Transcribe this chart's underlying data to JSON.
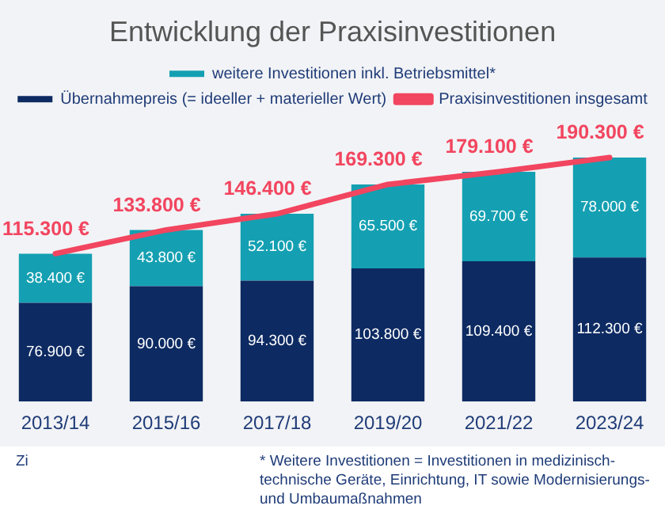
{
  "chart_data": {
    "type": "bar",
    "title": "Entwicklung der Praxisinvestitionen",
    "categories": [
      "2013/14",
      "2015/16",
      "2017/18",
      "2019/20",
      "2021/22",
      "2023/24"
    ],
    "stacked": true,
    "tick_labels": "x",
    "grid": false,
    "legend": "top",
    "series": [
      {
        "name": "Übernahmepreis (= ideeller + materieller Wert)",
        "color": "#0d2a62",
        "values": [
          76900,
          90000,
          94300,
          103800,
          109400,
          112300
        ],
        "value_labels": [
          "76.900 €",
          "90.000 €",
          "94.300 €",
          "103.800 €",
          "109.400 €",
          "112.300 €"
        ]
      },
      {
        "name": "weitere Investitionen inkl. Betriebsmittel*",
        "color": "#14a0b2",
        "values": [
          38400,
          43800,
          52100,
          65500,
          69700,
          78000
        ],
        "value_labels": [
          "38.400 €",
          "43.800 €",
          "52.100 €",
          "65.500 €",
          "69.700 €",
          "78.000 €"
        ]
      },
      {
        "name": "Praxisinvestitionen insgesamt",
        "type": "line",
        "color": "#f2455f",
        "values": [
          115300,
          133800,
          146400,
          169300,
          179100,
          190300
        ],
        "value_labels": [
          "115.300 €",
          "133.800 €",
          "146.400 €",
          "169.300 €",
          "179.100 €",
          "190.300 €"
        ]
      }
    ],
    "annotations": [
      "Zi",
      "* Weitere Investitionen = Investitionen in medizinisch-technische Geräte, Einrichtung, IT sowie Modernisierungs- und Umbaumaßnahmen"
    ]
  }
}
